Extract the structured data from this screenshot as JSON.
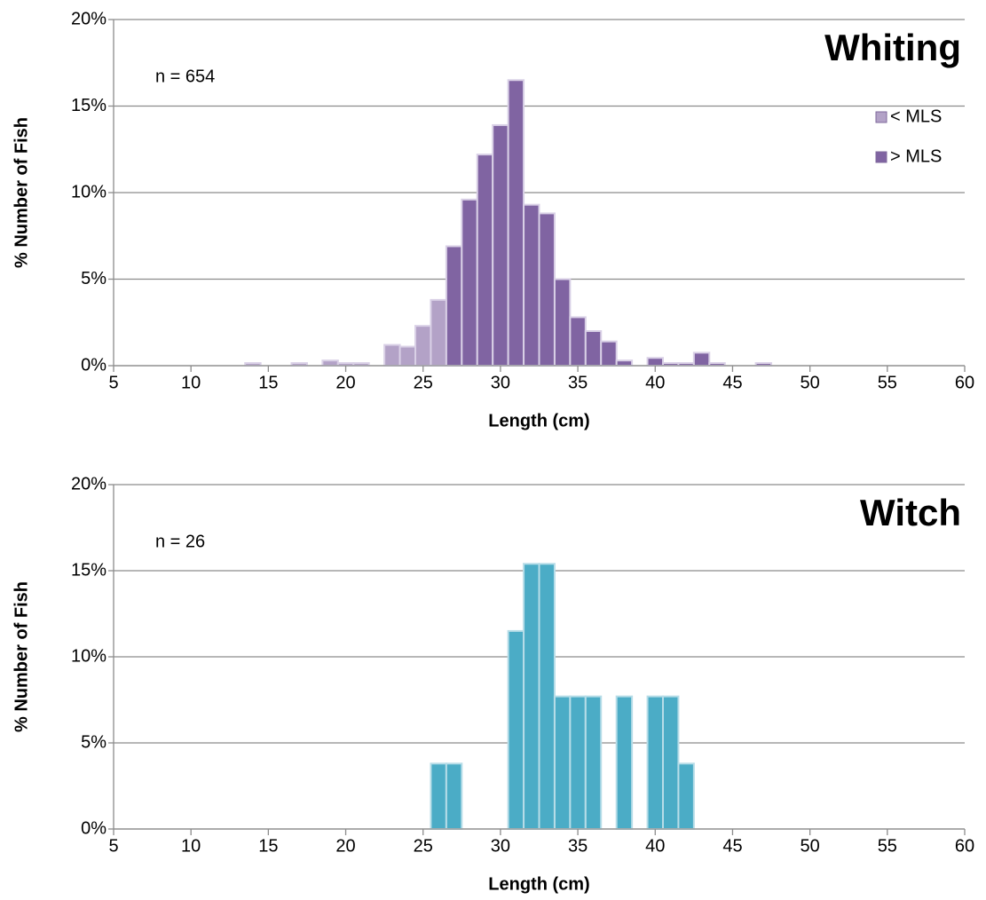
{
  "chart_data": [
    {
      "type": "histogram",
      "title": "Whiting",
      "annotation": "n = 654",
      "xlabel": "Length (cm)",
      "ylabel": "% Number of Fish",
      "bins": [
        13.5,
        14.5,
        15.5,
        16.5,
        17.5,
        18.5,
        19.5,
        20.5,
        21.5,
        22.5,
        23.5,
        24.5,
        25.5,
        26.5,
        27.5,
        28.5,
        29.5,
        30.5,
        31.5,
        32.5,
        33.5,
        34.5,
        35.5,
        36.5,
        37.5,
        38.5,
        39.5,
        40.5,
        41.5,
        42.5,
        43.5,
        44.5,
        45.5,
        46.5,
        47.5
      ],
      "series": [
        {
          "name": "< MLS",
          "color": "#b3a2c7",
          "values": [
            0.15,
            0,
            0,
            0.15,
            0,
            0.3,
            0.15,
            0.15,
            0,
            1.2,
            1.1,
            2.3,
            3.8,
            null,
            null,
            null,
            null,
            null,
            null,
            null,
            null,
            null,
            null,
            null,
            null,
            null,
            null,
            null,
            null,
            null,
            null,
            null,
            null,
            null
          ]
        },
        {
          "name": "> MLS",
          "color": "#8064a2",
          "values": [
            null,
            null,
            null,
            null,
            null,
            null,
            null,
            null,
            null,
            null,
            null,
            null,
            null,
            6.9,
            9.6,
            12.2,
            13.9,
            16.5,
            9.3,
            8.8,
            5.0,
            2.8,
            2.0,
            1.4,
            0.3,
            0,
            0.45,
            0.15,
            0.15,
            0.75,
            0.15,
            0,
            0,
            0.15
          ]
        }
      ],
      "edgecolor": "#d9d0e6",
      "xlim": [
        5,
        60
      ],
      "xticks": [
        5,
        10,
        15,
        20,
        25,
        30,
        35,
        40,
        45,
        50,
        55,
        60
      ],
      "ylim": [
        0,
        20
      ],
      "yticks": [
        {
          "value": 0,
          "label": "0%"
        },
        {
          "value": 5,
          "label": "5%"
        },
        {
          "value": 10,
          "label": "10%"
        },
        {
          "value": 15,
          "label": "15%"
        },
        {
          "value": 20,
          "label": "20%"
        }
      ],
      "grid": true,
      "legend": "upper right"
    },
    {
      "type": "histogram",
      "title": "Witch",
      "annotation": "n = 26",
      "xlabel": "Length (cm)",
      "ylabel": "% Number of Fish",
      "bins": [
        25.5,
        26.5,
        27.5,
        28.5,
        29.5,
        30.5,
        31.5,
        32.5,
        33.5,
        34.5,
        35.5,
        36.5,
        37.5,
        38.5,
        39.5,
        40.5,
        41.5,
        42.5
      ],
      "series": [
        {
          "color": "#4bacc6",
          "values": [
            3.8,
            3.8,
            0,
            0,
            0,
            11.5,
            15.4,
            15.4,
            7.7,
            7.7,
            7.7,
            0,
            7.7,
            0,
            7.7,
            7.7,
            3.8
          ]
        }
      ],
      "edgecolor": "#b7dde8",
      "xlim": [
        5,
        60
      ],
      "xticks": [
        5,
        10,
        15,
        20,
        25,
        30,
        35,
        40,
        45,
        50,
        55,
        60
      ],
      "ylim": [
        0,
        20
      ],
      "yticks": [
        {
          "value": 0,
          "label": "0%"
        },
        {
          "value": 5,
          "label": "5%"
        },
        {
          "value": 10,
          "label": "10%"
        },
        {
          "value": 15,
          "label": "15%"
        },
        {
          "value": 20,
          "label": "20%"
        }
      ],
      "grid": true
    }
  ]
}
